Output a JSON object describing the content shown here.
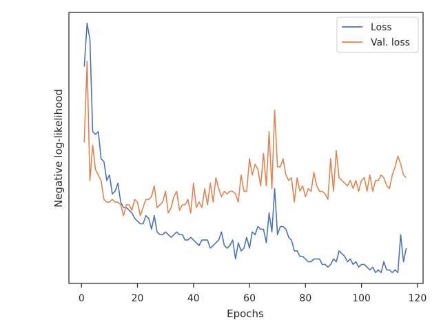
{
  "chart_data": {
    "type": "line",
    "xlabel": "Epochs",
    "ylabel": "Negative log-likelihood",
    "xlim": [
      -4.5,
      122
    ],
    "ylim": [
      0,
      100
    ],
    "xticks": [
      0,
      20,
      40,
      60,
      80,
      100,
      120
    ],
    "yticks": [],
    "grid": false,
    "legend": "top-right",
    "series": [
      {
        "name": "Loss",
        "color": "#4c72b0",
        "x": [
          1,
          2,
          3,
          4,
          5,
          6,
          7,
          8,
          9,
          10,
          11,
          12,
          13,
          14,
          15,
          16,
          17,
          18,
          19,
          20,
          21,
          22,
          23,
          24,
          25,
          26,
          27,
          28,
          29,
          30,
          31,
          32,
          33,
          34,
          35,
          36,
          37,
          38,
          39,
          40,
          41,
          42,
          43,
          44,
          45,
          46,
          47,
          48,
          49,
          50,
          51,
          52,
          53,
          54,
          55,
          56,
          57,
          58,
          59,
          60,
          61,
          62,
          63,
          64,
          65,
          66,
          67,
          68,
          69,
          70,
          71,
          72,
          73,
          74,
          75,
          76,
          77,
          78,
          79,
          80,
          81,
          82,
          83,
          84,
          85,
          86,
          87,
          88,
          89,
          90,
          91,
          92,
          93,
          94,
          95,
          96,
          97,
          98,
          99,
          100,
          101,
          102,
          103,
          104,
          105,
          106,
          107,
          108,
          109,
          110,
          111,
          112,
          113,
          114,
          115,
          116
        ],
        "values": [
          80,
          96,
          90,
          56,
          55,
          56,
          46,
          45,
          38,
          40,
          33,
          34,
          37,
          30,
          28,
          28,
          27,
          26,
          24,
          23,
          22,
          22,
          25,
          24,
          20,
          25,
          19,
          18,
          18,
          19,
          18,
          17,
          18,
          19,
          18,
          18,
          16,
          16,
          17,
          16,
          15,
          14,
          16,
          16,
          16,
          13,
          14,
          15,
          16,
          19,
          14,
          13,
          14,
          16,
          9,
          15,
          12,
          13,
          17,
          13,
          19,
          18,
          21,
          20,
          20,
          15,
          26,
          19,
          35,
          18,
          21,
          21,
          20,
          17,
          16,
          12,
          12,
          10,
          10,
          9,
          8,
          8,
          9,
          9,
          9,
          7,
          7,
          6,
          7,
          9,
          8,
          12,
          11,
          10,
          8,
          9,
          7,
          8,
          6,
          7,
          7,
          6,
          5,
          6,
          4,
          5,
          4,
          8,
          5,
          5,
          4,
          5,
          4,
          18,
          8,
          13
        ]
      },
      {
        "name": "Val. loss",
        "color": "#dd8452",
        "x": [
          1,
          2,
          3,
          4,
          5,
          6,
          7,
          8,
          9,
          10,
          11,
          12,
          13,
          14,
          15,
          16,
          17,
          18,
          19,
          20,
          21,
          22,
          23,
          24,
          25,
          26,
          27,
          28,
          29,
          30,
          31,
          32,
          33,
          34,
          35,
          36,
          37,
          38,
          39,
          40,
          41,
          42,
          43,
          44,
          45,
          46,
          47,
          48,
          49,
          50,
          51,
          52,
          53,
          54,
          55,
          56,
          57,
          58,
          59,
          60,
          61,
          62,
          63,
          64,
          65,
          66,
          67,
          68,
          69,
          70,
          71,
          72,
          73,
          74,
          75,
          76,
          77,
          78,
          79,
          80,
          81,
          82,
          83,
          84,
          85,
          86,
          87,
          88,
          89,
          90,
          91,
          92,
          93,
          94,
          95,
          96,
          97,
          98,
          99,
          100,
          101,
          102,
          103,
          104,
          105,
          106,
          107,
          108,
          109,
          110,
          111,
          112,
          113,
          114,
          115,
          116
        ],
        "values": [
          52,
          82,
          38,
          51,
          42,
          40,
          38,
          31,
          30,
          30,
          31,
          30,
          30,
          29,
          25,
          29,
          29,
          27,
          31,
          30,
          25,
          28,
          31,
          31,
          32,
          36,
          28,
          29,
          30,
          34,
          26,
          28,
          32,
          34,
          27,
          29,
          29,
          31,
          26,
          37,
          28,
          30,
          28,
          35,
          29,
          37,
          30,
          39,
          35,
          32,
          34,
          33,
          34,
          34,
          33,
          30,
          40,
          34,
          34,
          46,
          40,
          44,
          42,
          36,
          48,
          36,
          56,
          35,
          64,
          43,
          43,
          46,
          40,
          38,
          39,
          30,
          39,
          34,
          36,
          32,
          35,
          34,
          41,
          36,
          34,
          34,
          33,
          31,
          46,
          34,
          49,
          39,
          38,
          37,
          36,
          38,
          35,
          38,
          34,
          38,
          39,
          34,
          40,
          34,
          38,
          38,
          40,
          39,
          36,
          35,
          40,
          43,
          47,
          44,
          40,
          39
        ]
      }
    ]
  }
}
